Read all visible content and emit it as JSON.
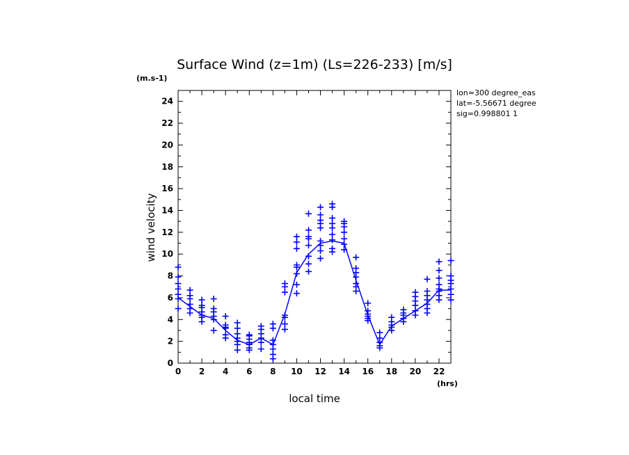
{
  "chart_data": {
    "type": "line",
    "title": "Surface Wind (z=1m) (Ls=226-233) [m/s]",
    "y_unit": "(m.s-1)",
    "x_unit": "(hrs)",
    "xlabel": "local time",
    "ylabel": "wind velocity",
    "info": [
      "lon=300 degree_eas",
      "lat=-5.56671 degree",
      "sig=0.998801 1"
    ],
    "xlim": [
      0,
      23
    ],
    "ylim": [
      0,
      25
    ],
    "x_ticks": [
      0,
      2,
      4,
      6,
      8,
      10,
      12,
      14,
      16,
      18,
      20,
      22
    ],
    "y_ticks": [
      0,
      2,
      4,
      6,
      8,
      10,
      12,
      14,
      16,
      18,
      20,
      22,
      24
    ],
    "color": "#0000ff",
    "grid": false,
    "series": [
      {
        "role": "mean",
        "x": [
          0,
          1,
          2,
          3,
          4,
          5,
          6,
          7,
          8,
          9,
          10,
          11,
          12,
          13,
          14,
          15,
          16,
          17,
          18,
          19,
          20,
          21,
          22,
          23
        ],
        "y": [
          6.0,
          5.2,
          4.4,
          4.1,
          3.0,
          2.1,
          1.7,
          2.3,
          1.7,
          4.5,
          8.3,
          10.0,
          11.0,
          11.2,
          11.0,
          7.6,
          4.4,
          1.7,
          3.4,
          4.1,
          4.8,
          5.5,
          6.7,
          6.7
        ]
      },
      {
        "role": "samples",
        "points": [
          [
            0,
            8.8
          ],
          [
            0,
            7.9
          ],
          [
            0,
            7.3
          ],
          [
            0,
            6.8
          ],
          [
            0,
            6.3
          ],
          [
            0,
            5.9
          ],
          [
            0,
            5.0
          ],
          [
            1,
            6.7
          ],
          [
            1,
            6.2
          ],
          [
            1,
            5.9
          ],
          [
            1,
            5.4
          ],
          [
            1,
            5.0
          ],
          [
            1,
            4.6
          ],
          [
            2,
            5.8
          ],
          [
            2,
            5.3
          ],
          [
            2,
            5.1
          ],
          [
            2,
            4.7
          ],
          [
            2,
            4.4
          ],
          [
            2,
            4.2
          ],
          [
            2,
            3.8
          ],
          [
            3,
            5.9
          ],
          [
            3,
            5.0
          ],
          [
            3,
            4.7
          ],
          [
            3,
            4.3
          ],
          [
            3,
            4.0
          ],
          [
            3,
            3.0
          ],
          [
            4,
            4.3
          ],
          [
            4,
            3.5
          ],
          [
            4,
            3.3
          ],
          [
            4,
            3.2
          ],
          [
            4,
            2.6
          ],
          [
            4,
            2.3
          ],
          [
            5,
            3.7
          ],
          [
            5,
            3.2
          ],
          [
            5,
            2.7
          ],
          [
            5,
            2.3
          ],
          [
            5,
            2.0
          ],
          [
            5,
            1.7
          ],
          [
            5,
            1.2
          ],
          [
            6,
            2.6
          ],
          [
            6,
            2.5
          ],
          [
            6,
            2.2
          ],
          [
            6,
            1.9
          ],
          [
            6,
            1.7
          ],
          [
            6,
            1.4
          ],
          [
            6,
            1.2
          ],
          [
            7,
            3.4
          ],
          [
            7,
            3.1
          ],
          [
            7,
            2.7
          ],
          [
            7,
            2.3
          ],
          [
            7,
            1.9
          ],
          [
            7,
            1.3
          ],
          [
            8,
            3.6
          ],
          [
            8,
            3.2
          ],
          [
            8,
            2.1
          ],
          [
            8,
            1.7
          ],
          [
            8,
            1.3
          ],
          [
            8,
            0.8
          ],
          [
            8,
            0.4
          ],
          [
            9,
            7.3
          ],
          [
            9,
            7.0
          ],
          [
            9,
            6.5
          ],
          [
            9,
            4.4
          ],
          [
            9,
            4.2
          ],
          [
            9,
            3.6
          ],
          [
            9,
            3.1
          ],
          [
            10,
            11.6
          ],
          [
            10,
            11.1
          ],
          [
            10,
            10.5
          ],
          [
            10,
            9.0
          ],
          [
            10,
            8.8
          ],
          [
            10,
            8.2
          ],
          [
            10,
            7.2
          ],
          [
            10,
            6.4
          ],
          [
            11,
            13.7
          ],
          [
            11,
            12.2
          ],
          [
            11,
            11.6
          ],
          [
            11,
            11.4
          ],
          [
            11,
            10.8
          ],
          [
            11,
            9.8
          ],
          [
            11,
            9.1
          ],
          [
            11,
            8.4
          ],
          [
            12,
            14.3
          ],
          [
            12,
            13.6
          ],
          [
            12,
            13.1
          ],
          [
            12,
            12.8
          ],
          [
            12,
            12.4
          ],
          [
            12,
            11.2
          ],
          [
            12,
            10.8
          ],
          [
            12,
            10.3
          ],
          [
            12,
            9.6
          ],
          [
            13,
            14.6
          ],
          [
            13,
            14.3
          ],
          [
            13,
            13.3
          ],
          [
            13,
            12.8
          ],
          [
            13,
            12.4
          ],
          [
            13,
            11.8
          ],
          [
            13,
            11.3
          ],
          [
            13,
            10.5
          ],
          [
            13,
            10.2
          ],
          [
            14,
            13.0
          ],
          [
            14,
            12.8
          ],
          [
            14,
            12.5
          ],
          [
            14,
            12.0
          ],
          [
            14,
            11.4
          ],
          [
            14,
            10.9
          ],
          [
            14,
            10.4
          ],
          [
            15,
            9.7
          ],
          [
            15,
            8.7
          ],
          [
            15,
            8.3
          ],
          [
            15,
            7.9
          ],
          [
            15,
            7.3
          ],
          [
            15,
            7.0
          ],
          [
            15,
            6.6
          ],
          [
            16,
            5.5
          ],
          [
            16,
            4.8
          ],
          [
            16,
            4.5
          ],
          [
            16,
            4.3
          ],
          [
            16,
            4.1
          ],
          [
            16,
            3.9
          ],
          [
            17,
            2.8
          ],
          [
            17,
            2.3
          ],
          [
            17,
            1.9
          ],
          [
            17,
            1.6
          ],
          [
            17,
            1.4
          ],
          [
            18,
            4.2
          ],
          [
            18,
            3.8
          ],
          [
            18,
            3.5
          ],
          [
            18,
            3.3
          ],
          [
            18,
            3.0
          ],
          [
            19,
            4.9
          ],
          [
            19,
            4.6
          ],
          [
            19,
            4.4
          ],
          [
            19,
            4.1
          ],
          [
            19,
            3.8
          ],
          [
            20,
            6.5
          ],
          [
            20,
            6.1
          ],
          [
            20,
            5.7
          ],
          [
            20,
            5.3
          ],
          [
            20,
            4.8
          ],
          [
            20,
            4.4
          ],
          [
            21,
            7.7
          ],
          [
            21,
            6.6
          ],
          [
            21,
            6.2
          ],
          [
            21,
            5.8
          ],
          [
            21,
            5.4
          ],
          [
            21,
            5.0
          ],
          [
            21,
            4.6
          ],
          [
            22,
            9.3
          ],
          [
            22,
            8.5
          ],
          [
            22,
            7.8
          ],
          [
            22,
            7.2
          ],
          [
            22,
            6.8
          ],
          [
            22,
            6.6
          ],
          [
            22,
            6.2
          ],
          [
            22,
            5.8
          ],
          [
            23,
            9.4
          ],
          [
            23,
            8.0
          ],
          [
            23,
            7.6
          ],
          [
            23,
            7.3
          ],
          [
            23,
            6.8
          ],
          [
            23,
            6.3
          ],
          [
            23,
            5.8
          ]
        ]
      }
    ]
  }
}
